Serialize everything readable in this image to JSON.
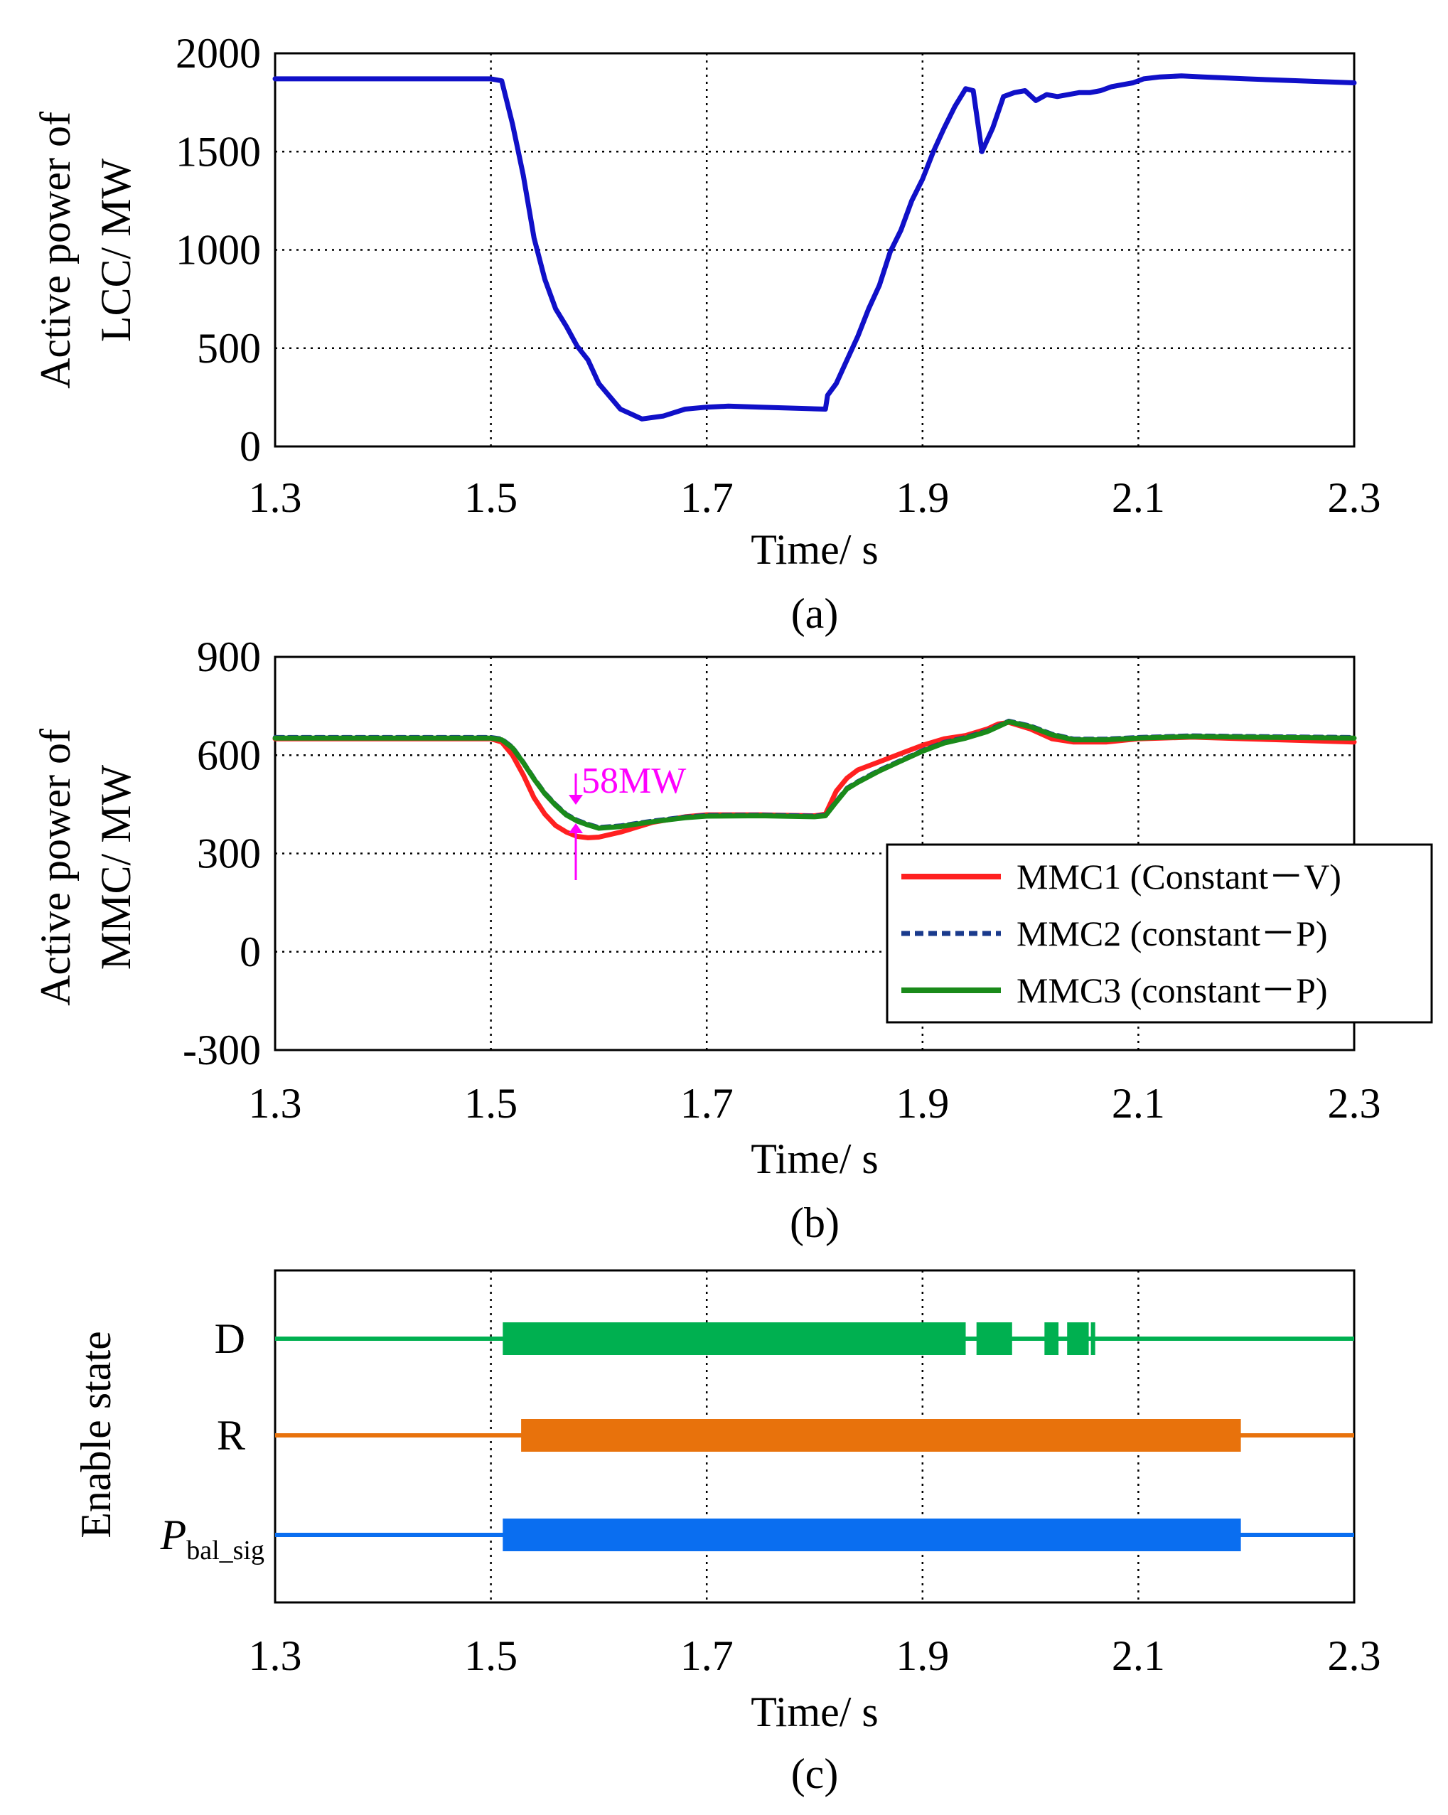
{
  "chart_data": [
    {
      "id": "a",
      "type": "line",
      "caption": "(a)",
      "xlabel": "Time/ s",
      "ylabel_lines": [
        "Active power of",
        "LCC/ MW"
      ],
      "xlim": [
        1.3,
        2.3
      ],
      "ylim": [
        0,
        2000
      ],
      "xticks": [
        1.3,
        1.5,
        1.7,
        1.9,
        2.1,
        2.3
      ],
      "xtick_labels": [
        "1.3",
        "1.5",
        "1.7",
        "1.9",
        "2.1",
        "2.3"
      ],
      "yticks": [
        0,
        500,
        1000,
        1500,
        2000
      ],
      "ytick_labels": [
        "0",
        "500",
        "1000",
        "1500",
        "2000"
      ],
      "grid": true,
      "series": [
        {
          "name": "LCC",
          "color": "#1010c8",
          "x": [
            1.3,
            1.5,
            1.51,
            1.52,
            1.53,
            1.54,
            1.55,
            1.56,
            1.57,
            1.58,
            1.59,
            1.6,
            1.62,
            1.64,
            1.66,
            1.68,
            1.7,
            1.72,
            1.75,
            1.78,
            1.81,
            1.812,
            1.82,
            1.83,
            1.84,
            1.85,
            1.86,
            1.87,
            1.88,
            1.89,
            1.9,
            1.91,
            1.92,
            1.93,
            1.94,
            1.947,
            1.955,
            1.965,
            1.975,
            1.985,
            1.995,
            2.005,
            2.015,
            2.025,
            2.035,
            2.045,
            2.055,
            2.065,
            2.075,
            2.085,
            2.095,
            2.105,
            2.12,
            2.14,
            2.16,
            2.2,
            2.25,
            2.3
          ],
          "y": [
            1870,
            1870,
            1860,
            1640,
            1380,
            1060,
            850,
            700,
            610,
            510,
            440,
            320,
            190,
            140,
            155,
            190,
            200,
            205,
            200,
            195,
            190,
            260,
            320,
            440,
            560,
            700,
            820,
            990,
            1100,
            1250,
            1360,
            1500,
            1620,
            1730,
            1820,
            1810,
            1500,
            1620,
            1780,
            1800,
            1810,
            1760,
            1790,
            1780,
            1790,
            1800,
            1800,
            1810,
            1830,
            1840,
            1850,
            1870,
            1880,
            1885,
            1880,
            1870,
            1860,
            1850
          ]
        }
      ]
    },
    {
      "id": "b",
      "type": "line",
      "caption": "(b)",
      "xlabel": "Time/ s",
      "ylabel_lines": [
        "Active power of",
        "MMC/ MW"
      ],
      "xlim": [
        1.3,
        2.3
      ],
      "ylim": [
        -300,
        900
      ],
      "xticks": [
        1.3,
        1.5,
        1.7,
        1.9,
        2.1,
        2.3
      ],
      "xtick_labels": [
        "1.3",
        "1.5",
        "1.7",
        "1.9",
        "2.1",
        "2.3"
      ],
      "yticks": [
        -300,
        0,
        300,
        600,
        900
      ],
      "ytick_labels": [
        "-300",
        "0",
        "300",
        "600",
        "900"
      ],
      "grid": true,
      "legend_position": "right",
      "annotation": {
        "text": "58MW",
        "x": 1.577,
        "y_top": 420,
        "y_bottom": 362,
        "color": "#ff00ff"
      },
      "series": [
        {
          "name": "MMC1 (Constant－V)",
          "color": "#ff2020",
          "style": "solid",
          "x": [
            1.3,
            1.5,
            1.51,
            1.52,
            1.53,
            1.54,
            1.55,
            1.56,
            1.57,
            1.58,
            1.59,
            1.6,
            1.62,
            1.65,
            1.68,
            1.7,
            1.75,
            1.8,
            1.81,
            1.82,
            1.83,
            1.84,
            1.86,
            1.88,
            1.9,
            1.92,
            1.94,
            1.96,
            1.97,
            1.98,
            2.0,
            2.02,
            2.04,
            2.07,
            2.1,
            2.15,
            2.2,
            2.3
          ],
          "y": [
            650,
            650,
            640,
            600,
            540,
            470,
            420,
            385,
            365,
            352,
            348,
            350,
            365,
            395,
            412,
            418,
            418,
            415,
            420,
            490,
            530,
            555,
            580,
            605,
            630,
            650,
            660,
            680,
            695,
            700,
            680,
            650,
            640,
            640,
            650,
            655,
            650,
            640
          ]
        },
        {
          "name": "MMC2 (constant－P)",
          "color": "#1a3a8c",
          "style": "dashed",
          "x": [
            1.3,
            1.5,
            1.51,
            1.52,
            1.53,
            1.54,
            1.55,
            1.56,
            1.57,
            1.58,
            1.59,
            1.6,
            1.62,
            1.65,
            1.68,
            1.7,
            1.75,
            1.8,
            1.81,
            1.82,
            1.83,
            1.84,
            1.86,
            1.88,
            1.9,
            1.92,
            1.94,
            1.96,
            1.97,
            1.98,
            2.0,
            2.02,
            2.04,
            2.07,
            2.1,
            2.15,
            2.2,
            2.3
          ],
          "y": [
            655,
            655,
            650,
            625,
            580,
            530,
            485,
            450,
            420,
            402,
            390,
            380,
            385,
            400,
            412,
            417,
            418,
            415,
            418,
            460,
            500,
            520,
            555,
            585,
            615,
            640,
            655,
            675,
            690,
            705,
            690,
            665,
            650,
            650,
            655,
            660,
            658,
            655
          ]
        },
        {
          "name": "MMC3 (constant－P)",
          "color": "#1a8a1a",
          "style": "solid",
          "x": [
            1.3,
            1.5,
            1.51,
            1.52,
            1.53,
            1.54,
            1.55,
            1.56,
            1.57,
            1.58,
            1.59,
            1.6,
            1.62,
            1.65,
            1.68,
            1.7,
            1.75,
            1.8,
            1.81,
            1.82,
            1.83,
            1.84,
            1.86,
            1.88,
            1.9,
            1.92,
            1.94,
            1.96,
            1.97,
            1.98,
            2.0,
            2.02,
            2.04,
            2.07,
            2.1,
            2.15,
            2.2,
            2.3
          ],
          "y": [
            652,
            652,
            647,
            622,
            577,
            527,
            482,
            447,
            417,
            399,
            387,
            377,
            382,
            397,
            409,
            414,
            415,
            412,
            415,
            457,
            497,
            517,
            552,
            582,
            612,
            637,
            652,
            672,
            687,
            702,
            687,
            662,
            647,
            647,
            652,
            657,
            655,
            652
          ]
        }
      ]
    },
    {
      "id": "c",
      "type": "state",
      "caption": "(c)",
      "xlabel": "Time/ s",
      "ylabel": "Enable state",
      "xlim": [
        1.3,
        2.3
      ],
      "xticks": [
        1.3,
        1.5,
        1.7,
        1.9,
        2.1,
        2.3
      ],
      "xtick_labels": [
        "1.3",
        "1.5",
        "1.7",
        "1.9",
        "2.1",
        "2.3"
      ],
      "grid": true,
      "rows": [
        {
          "label": "D",
          "color": "#00b050",
          "enabled": [
            [
              1.511,
              1.94
            ],
            [
              1.95,
              1.983
            ],
            [
              2.013,
              2.026
            ],
            [
              2.034,
              2.054
            ],
            [
              2.056,
              2.06
            ]
          ]
        },
        {
          "label": "R",
          "color": "#e8720c",
          "enabled": [
            [
              1.528,
              2.195
            ]
          ]
        },
        {
          "label": "P",
          "sub": "bal_sig",
          "color": "#0a6ef0",
          "enabled": [
            [
              1.511,
              2.195
            ]
          ]
        }
      ]
    }
  ]
}
